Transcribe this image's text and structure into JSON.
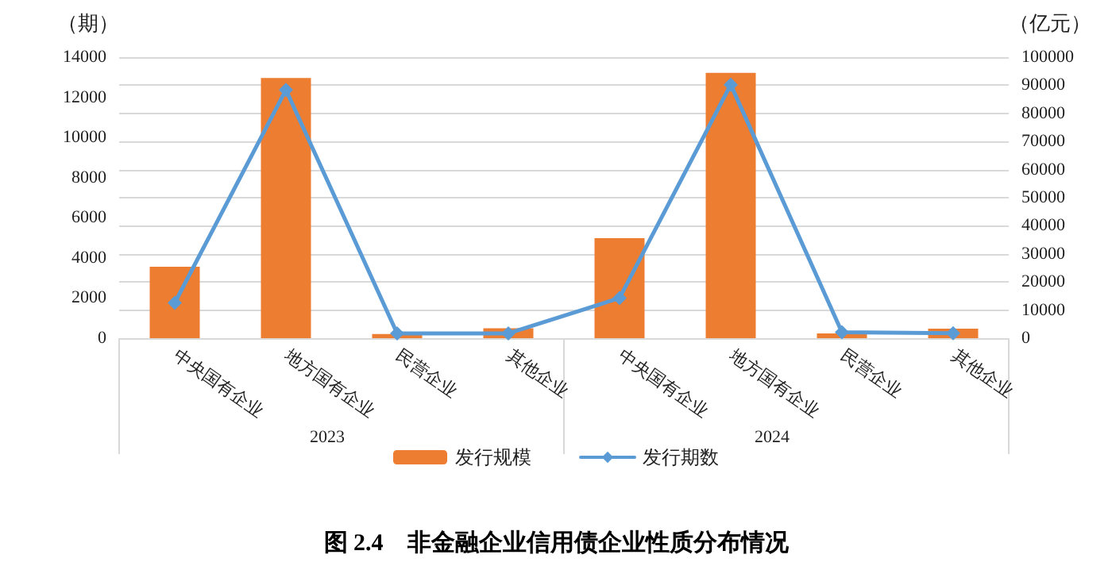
{
  "chart_data": {
    "type": "bar",
    "title": "图 2.4　非金融企业信用债企业性质分布情况",
    "categories": [
      "中央国有企业",
      "地方国有企业",
      "民营企业",
      "其他企业",
      "中央国有企业",
      "地方国有企业",
      "民营企业",
      "其他企业"
    ],
    "annotations": [
      "2023",
      "2024"
    ],
    "ylabel": "（期）",
    "y2label": "（亿元）",
    "series": [
      {
        "name": "发行规模",
        "axis": "y2",
        "color": "#ed7d31",
        "values": [
          25400,
          92600,
          1500,
          3500,
          35600,
          94400,
          1700,
          3400
        ]
      },
      {
        "name": "发行期数",
        "type": "line",
        "color": "#5b9bd5",
        "marker": "diamond",
        "values": [
          1760,
          12370,
          240,
          240,
          2000,
          12630,
          300,
          250
        ]
      }
    ],
    "ylim": [
      0,
      14000
    ],
    "yticks": [
      0,
      2000,
      4000,
      6000,
      8000,
      10000,
      12000,
      14000
    ],
    "y2lim": [
      0,
      100000
    ],
    "y2ticks": [
      0,
      10000,
      20000,
      30000,
      40000,
      50000,
      60000,
      70000,
      80000,
      90000,
      100000
    ],
    "grid": true,
    "legend": "bottom"
  }
}
